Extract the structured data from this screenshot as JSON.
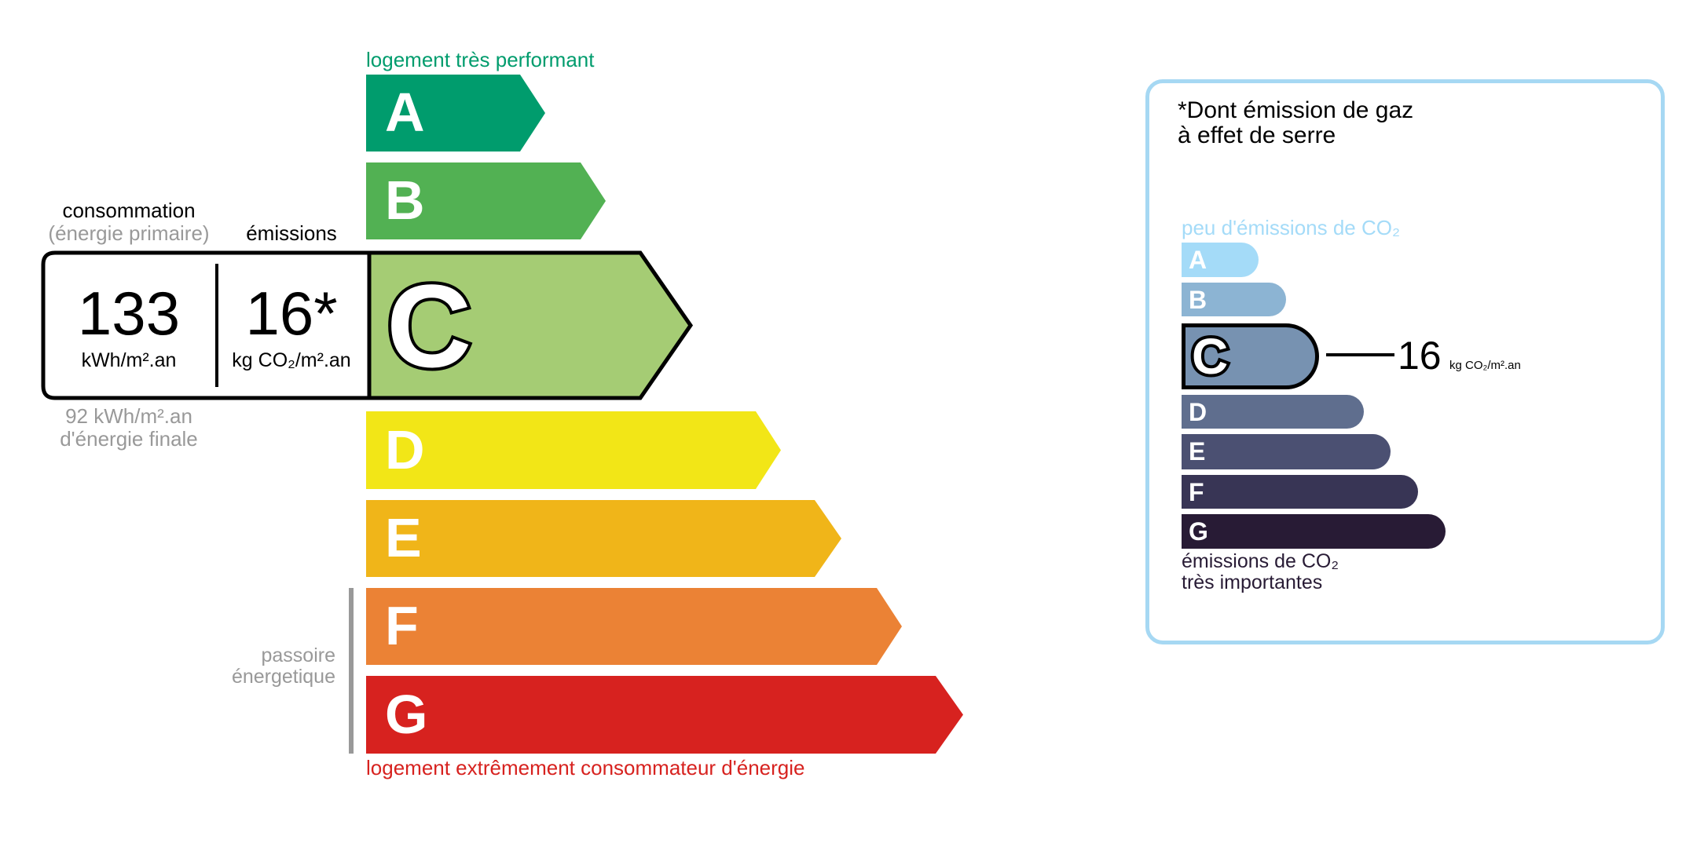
{
  "energy_label": {
    "top_label": "logement très performant",
    "bottom_label": "logement extrêmement consommateur d'énergie",
    "passoire_label": [
      "passoire",
      "énergetique"
    ],
    "classes": [
      {
        "letter": "A",
        "color": "#009c6d"
      },
      {
        "letter": "B",
        "color": "#52b153"
      },
      {
        "letter": "C",
        "color": "#a5cc74"
      },
      {
        "letter": "D",
        "color": "#f2e617"
      },
      {
        "letter": "E",
        "color": "#f0b519"
      },
      {
        "letter": "F",
        "color": "#eb8235"
      },
      {
        "letter": "G",
        "color": "#d7221f"
      }
    ],
    "current_class": "C",
    "consumption_header": "consommation",
    "consumption_subheader": "(énergie primaire)",
    "emissions_header": "émissions",
    "consumption_value": "133",
    "consumption_unit": "kWh/m².an",
    "emissions_value": "16*",
    "emissions_unit": "kg CO₂/m².an",
    "final_energy_value": "92 kWh/m².an",
    "final_energy_label": "d'énergie finale",
    "top_color": "#009c6d",
    "bottom_color": "#d7221f"
  },
  "ges_label": {
    "title_line1": "*Dont émission de gaz",
    "title_line2": "à effet de serre",
    "top_label": "peu d'émissions de CO₂",
    "bottom_label_line1": "émissions de CO₂",
    "bottom_label_line2": "très importantes",
    "classes": [
      {
        "letter": "A",
        "color": "#a4dbf8"
      },
      {
        "letter": "B",
        "color": "#8cb4d3"
      },
      {
        "letter": "C",
        "color": "#7792b1"
      },
      {
        "letter": "D",
        "color": "#5f6e8e"
      },
      {
        "letter": "E",
        "color": "#4b5072"
      },
      {
        "letter": "F",
        "color": "#383555"
      },
      {
        "letter": "G",
        "color": "#281b35"
      }
    ],
    "current_class": "C",
    "value": "16",
    "unit": "kg CO₂/m².an",
    "border_color": "#a6d8f3"
  }
}
